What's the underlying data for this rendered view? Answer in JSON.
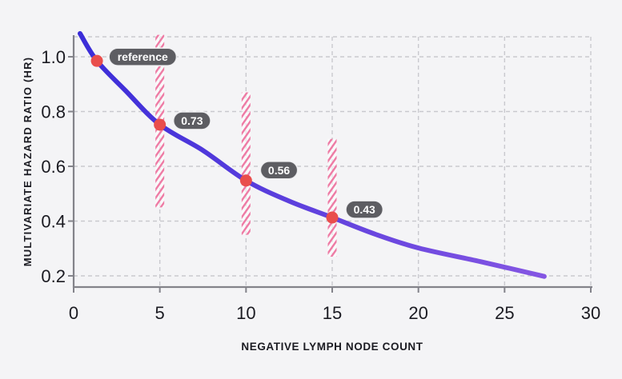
{
  "page": {
    "background": "#ffffff"
  },
  "card": {
    "background": "#f4f4f6",
    "corner_radius": 24
  },
  "chart_data": {
    "type": "line",
    "title": "",
    "xlabel": "NEGATIVE LYMPH NODE COUNT",
    "ylabel": "MULTIVARIATE HAZARD RATIO (HR)",
    "xlim": [
      0,
      30
    ],
    "ylim": [
      0.16,
      1.08
    ],
    "grid": "dashed",
    "legend_position": "none",
    "xticks": {
      "values": [
        0,
        5,
        10,
        15,
        20,
        25,
        30
      ],
      "labels": [
        "0",
        "5",
        "10",
        "15",
        "20",
        "25",
        "30"
      ]
    },
    "yticks": {
      "values": [
        0.2,
        0.4,
        0.6,
        0.8,
        1.0
      ],
      "labels": [
        "0.2",
        "0.4",
        "0.6",
        "0.8",
        "1.0"
      ]
    },
    "series": [
      {
        "name": "multivariate-hazard-ratio-curve",
        "type": "smooth-line",
        "points": [
          [
            0.37,
            1.085
          ],
          [
            1.35,
            0.985
          ],
          [
            3,
            0.877
          ],
          [
            5,
            0.752
          ],
          [
            7.5,
            0.658
          ],
          [
            10,
            0.548
          ],
          [
            12.5,
            0.473
          ],
          [
            15,
            0.413
          ],
          [
            17.5,
            0.352
          ],
          [
            20,
            0.302
          ],
          [
            23.6,
            0.252
          ],
          [
            27.3,
            0.198
          ]
        ]
      }
    ],
    "markers": [
      {
        "x": 1.35,
        "y": 0.985,
        "label": "reference",
        "hazard_ratio": 1.0,
        "ci_low": null,
        "ci_high": null
      },
      {
        "x": 5,
        "y": 0.752,
        "label": "0.73",
        "hazard_ratio": 0.73,
        "ci_low": 0.45,
        "ci_high": 1.08
      },
      {
        "x": 10,
        "y": 0.548,
        "label": "0.56",
        "hazard_ratio": 0.56,
        "ci_low": 0.35,
        "ci_high": 0.87
      },
      {
        "x": 15,
        "y": 0.413,
        "label": "0.43",
        "hazard_ratio": 0.43,
        "ci_low": 0.27,
        "ci_high": 0.7
      }
    ],
    "colors": {
      "curve_gradient_start": "#3a2cd8",
      "curve_gradient_end": "#8c5ae4",
      "marker": "#e94e4c",
      "badge_bg": "#5d5d62",
      "badge_text": "#ffffff",
      "badge_outline": "rgba(244,244,246,0.9)",
      "ci_stripe": "#ee7aa4",
      "ci_band_bg": "rgba(255,255,255,0.55)",
      "grid": "#c9c9ce",
      "axis": "#83838a",
      "text": "#1b1b22"
    }
  }
}
